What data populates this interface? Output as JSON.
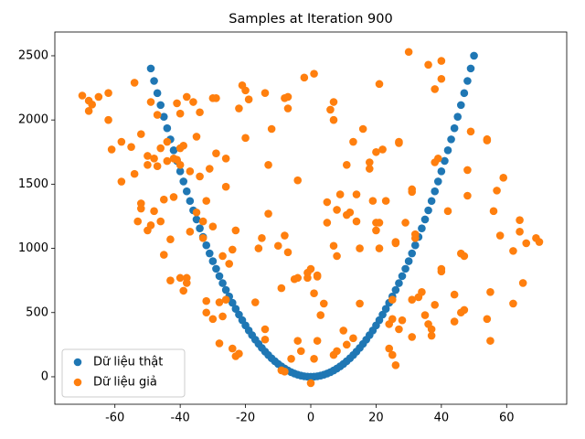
{
  "chart_data": {
    "type": "scatter",
    "title": "Samples at Iteration 900",
    "xlim": [
      -78.4,
      78.4
    ],
    "ylim": [
      -214,
      2685
    ],
    "xticks": [
      -60,
      -40,
      -20,
      0,
      20,
      40,
      60
    ],
    "yticks": [
      0,
      500,
      1000,
      1500,
      2000,
      2500
    ],
    "legend": "lower left",
    "series": [
      {
        "name": "Dữ liệu thật",
        "color": "#1f77b4",
        "x": [
          -49,
          -48,
          -47,
          -46,
          -45,
          -44,
          -43,
          -42,
          -41,
          -40,
          -39,
          -38,
          -37,
          -36,
          -35,
          -34,
          -33,
          -32,
          -31,
          -30,
          -29,
          -28,
          -27,
          -26,
          -25,
          -24,
          -23,
          -22,
          -21,
          -20,
          -19,
          -18,
          -17,
          -16,
          -15,
          -14,
          -13,
          -12,
          -11,
          -10,
          -9,
          -8,
          -7,
          -6,
          -5,
          -4,
          -3,
          -2,
          -1,
          0,
          1,
          2,
          3,
          4,
          5,
          6,
          7,
          8,
          9,
          10,
          11,
          12,
          13,
          14,
          15,
          16,
          17,
          18,
          19,
          20,
          21,
          22,
          23,
          24,
          25,
          26,
          27,
          28,
          29,
          30,
          31,
          32,
          33,
          34,
          35,
          36,
          37,
          38,
          39,
          40,
          41,
          42,
          43,
          44,
          45,
          46,
          47,
          48,
          49,
          50
        ],
        "values": [
          2401,
          2304,
          2209,
          2116,
          2025,
          1936,
          1849,
          1764,
          1681,
          1600,
          1521,
          1444,
          1369,
          1296,
          1225,
          1156,
          1089,
          1024,
          961,
          900,
          841,
          784,
          729,
          676,
          625,
          576,
          529,
          484,
          441,
          400,
          361,
          324,
          289,
          256,
          225,
          196,
          169,
          144,
          121,
          100,
          81,
          64,
          49,
          36,
          25,
          16,
          9,
          4,
          1,
          0,
          1,
          4,
          9,
          16,
          25,
          36,
          49,
          64,
          81,
          100,
          121,
          144,
          169,
          196,
          225,
          256,
          289,
          324,
          361,
          400,
          441,
          484,
          529,
          576,
          625,
          676,
          729,
          784,
          841,
          900,
          961,
          1024,
          1089,
          1156,
          1225,
          1296,
          1369,
          1444,
          1521,
          1600,
          1681,
          1764,
          1849,
          1936,
          2025,
          2116,
          2209,
          2304,
          2401,
          2500
        ]
      },
      {
        "name": "Dữ liệu giả",
        "color": "#ff7f0e",
        "x": [
          -70,
          -68,
          -68,
          -67,
          -65,
          -62,
          -62,
          -61,
          -58,
          -58,
          -55,
          -54,
          -54,
          -53,
          -52,
          -52,
          -52,
          -50,
          -50,
          -50,
          -49,
          -49,
          -48,
          -48,
          -47,
          -47,
          -46,
          -46,
          -45,
          -45,
          -44,
          -44,
          -43,
          -43,
          -42,
          -42,
          -41,
          -41,
          -40,
          -40,
          -40,
          -40,
          -39,
          -39,
          -38,
          -38,
          -38,
          -37,
          -37,
          -36,
          -35,
          -35,
          -34,
          -34,
          -33,
          -33,
          -32,
          -32,
          -32,
          -31,
          -30,
          -30,
          -30,
          -29,
          -29,
          -28,
          -28,
          -27,
          -27,
          -26,
          -26,
          -26,
          -25,
          -24,
          -24,
          -23,
          -23,
          -22,
          -22,
          -21,
          -20,
          -20,
          -19,
          -17,
          -16,
          -15,
          -14,
          -14,
          -14,
          -13,
          -13,
          -12,
          -10,
          -9,
          -9,
          -8,
          -8,
          -8,
          -7,
          -7,
          -7,
          -6,
          -5,
          -4,
          -4,
          -4,
          -3,
          -2,
          -1,
          -1,
          0,
          0,
          1,
          1,
          1,
          2,
          2,
          2,
          3,
          4,
          5,
          5,
          6,
          7,
          7,
          7,
          7,
          8,
          8,
          8,
          9,
          10,
          11,
          11,
          11,
          12,
          13,
          13,
          14,
          14,
          15,
          15,
          16,
          18,
          18,
          19,
          20,
          20,
          20,
          21,
          21,
          21,
          22,
          23,
          24,
          24,
          25,
          25,
          25,
          26,
          26,
          26,
          27,
          27,
          27,
          28,
          29,
          30,
          31,
          31,
          31,
          31,
          32,
          32,
          33,
          34,
          35,
          36,
          36,
          37,
          37,
          38,
          38,
          38,
          39,
          40,
          40,
          40,
          40,
          42,
          44,
          44,
          46,
          46,
          47,
          47,
          48,
          48,
          49,
          54,
          54,
          54,
          55,
          55,
          56,
          57,
          58,
          59,
          62,
          62,
          64,
          64,
          65,
          66,
          69,
          70
        ],
        "values": [
          2190,
          2070,
          2150,
          2120,
          2180,
          2210,
          2000,
          1770,
          1830,
          1520,
          1790,
          2290,
          1580,
          1210,
          1890,
          1310,
          1350,
          1720,
          1650,
          1140,
          2140,
          1180,
          1700,
          1290,
          1640,
          2040,
          1780,
          1210,
          950,
          1380,
          1680,
          1830,
          1070,
          750,
          1400,
          1700,
          1690,
          2130,
          2050,
          1780,
          1650,
          770,
          670,
          1800,
          770,
          730,
          2180,
          1130,
          1600,
          2140,
          1280,
          1870,
          1560,
          2060,
          1080,
          1210,
          590,
          500,
          1370,
          1620,
          2170,
          450,
          1170,
          1740,
          2170,
          580,
          260,
          940,
          470,
          600,
          1480,
          1700,
          880,
          220,
          990,
          1140,
          160,
          180,
          2090,
          2270,
          2230,
          1860,
          2160,
          580,
          1000,
          1080,
          290,
          370,
          2210,
          1650,
          1270,
          1930,
          1020,
          690,
          50,
          2170,
          1100,
          40,
          2090,
          2180,
          970,
          140,
          760,
          1530,
          770,
          280,
          200,
          2330,
          810,
          770,
          840,
          -50,
          2360,
          140,
          650,
          790,
          280,
          780,
          480,
          570,
          1200,
          1360,
          2080,
          2140,
          2000,
          1020,
          170,
          200,
          1300,
          940,
          1420,
          360,
          1650,
          250,
          1260,
          1280,
          300,
          1830,
          1420,
          1210,
          1000,
          570,
          1930,
          1620,
          1670,
          1370,
          1200,
          1750,
          1140,
          2280,
          1200,
          1000,
          1770,
          1370,
          410,
          220,
          600,
          450,
          170,
          90,
          1050,
          1040,
          1830,
          1820,
          370,
          440,
          1200,
          2530,
          310,
          1440,
          1460,
          600,
          1080,
          1110,
          620,
          660,
          480,
          2430,
          410,
          370,
          320,
          560,
          2240,
          1670,
          1700,
          2460,
          2320,
          820,
          840,
          1290,
          640,
          430,
          960,
          500,
          940,
          520,
          1610,
          1410,
          1910,
          1850,
          1840,
          450,
          660,
          280,
          1290,
          1450,
          1100,
          1550,
          980,
          570,
          1220,
          1130,
          730,
          1040,
          1080,
          1050
        ]
      }
    ]
  }
}
